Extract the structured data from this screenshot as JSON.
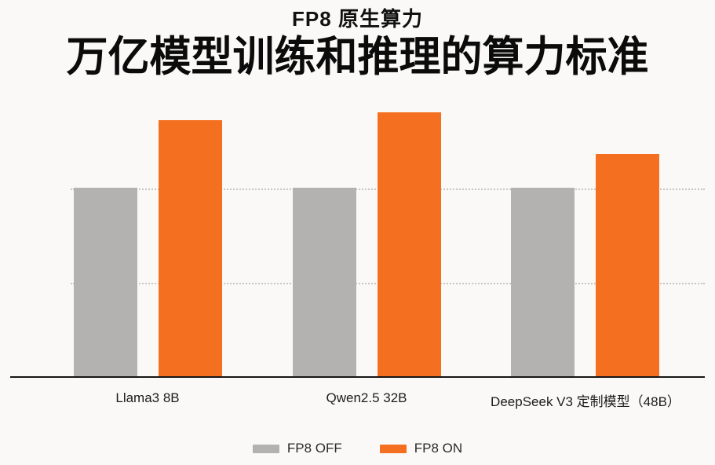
{
  "chart_data": {
    "type": "bar",
    "subtitle": "FP8 原生算力",
    "title": "万亿模型训练和推理的算力标准",
    "categories": [
      "Llama3 8B",
      "Qwen2.5 32B",
      "DeepSeek V3 定制模型（48B）"
    ],
    "series": [
      {
        "name": "FP8 OFF",
        "color": "#B3B2B1",
        "values": [
          1.0,
          1.0,
          1.0
        ]
      },
      {
        "name": "FP8 ON",
        "color": "#F47020",
        "values": [
          1.36,
          1.4,
          1.18
        ]
      }
    ],
    "ylim": [
      0,
      1.47
    ],
    "gridlines": [
      0.5,
      1.0
    ],
    "grid_style": "dotted",
    "y_tick_labels_visible": false,
    "value_labels_visible": false,
    "legend_position": "bottom",
    "xlabel": "",
    "ylabel": ""
  },
  "colors": {
    "background": "#FAF9F7",
    "axis_line": "#161616",
    "gridline": "#C6C5C2",
    "title_text": "#0B0B0B",
    "label_text": "#1C1C1C"
  }
}
